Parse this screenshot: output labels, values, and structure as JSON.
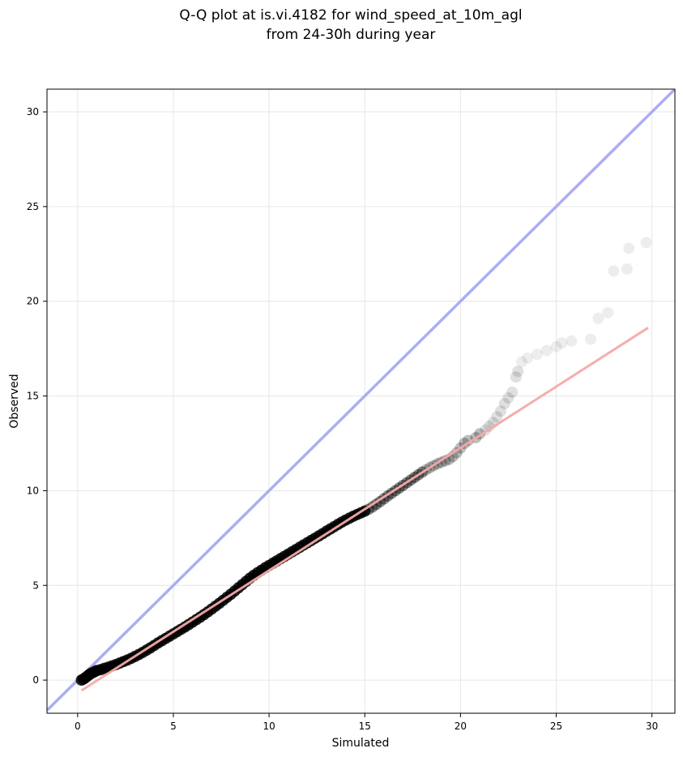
{
  "chart_data": {
    "type": "scatter",
    "title_lines": [
      "Q-Q plot at is.vi.4182 for wind_speed_at_10m_agl",
      "from 24-30h during year"
    ],
    "xlabel": "Simulated",
    "ylabel": "Observed",
    "xlim": [
      -1.6,
      31.2
    ],
    "ylim": [
      -1.75,
      31.2
    ],
    "xticks": [
      0,
      5,
      10,
      15,
      20,
      25,
      30
    ],
    "yticks": [
      0,
      5,
      10,
      15,
      20,
      25,
      30
    ],
    "grid": true,
    "reference_line": {
      "x": [
        -1.6,
        31.2
      ],
      "y": [
        -1.6,
        31.2
      ],
      "color": "#a6aaf3"
    },
    "fit_line": {
      "x": [
        0.2,
        29.8
      ],
      "y": [
        -0.55,
        18.6
      ],
      "color": "#f5a9a9"
    },
    "points_color": "#000000",
    "points": [
      [
        0.2,
        0.0
      ],
      [
        0.3,
        0.05
      ],
      [
        0.4,
        0.12
      ],
      [
        0.5,
        0.2
      ],
      [
        0.6,
        0.28
      ],
      [
        0.7,
        0.35
      ],
      [
        0.8,
        0.4
      ],
      [
        0.9,
        0.45
      ],
      [
        1.0,
        0.5
      ],
      [
        1.2,
        0.55
      ],
      [
        1.4,
        0.62
      ],
      [
        1.6,
        0.68
      ],
      [
        1.8,
        0.75
      ],
      [
        2.0,
        0.82
      ],
      [
        2.2,
        0.9
      ],
      [
        2.4,
        0.98
      ],
      [
        2.6,
        1.06
      ],
      [
        2.8,
        1.15
      ],
      [
        3.0,
        1.25
      ],
      [
        3.2,
        1.35
      ],
      [
        3.4,
        1.46
      ],
      [
        3.6,
        1.58
      ],
      [
        3.8,
        1.7
      ],
      [
        4.0,
        1.83
      ],
      [
        4.2,
        1.96
      ],
      [
        4.4,
        2.08
      ],
      [
        4.6,
        2.2
      ],
      [
        4.8,
        2.32
      ],
      [
        5.0,
        2.44
      ],
      [
        5.2,
        2.56
      ],
      [
        5.4,
        2.68
      ],
      [
        5.6,
        2.8
      ],
      [
        5.8,
        2.93
      ],
      [
        6.0,
        3.06
      ],
      [
        6.2,
        3.19
      ],
      [
        6.4,
        3.32
      ],
      [
        6.6,
        3.46
      ],
      [
        6.8,
        3.6
      ],
      [
        7.0,
        3.75
      ],
      [
        7.2,
        3.9
      ],
      [
        7.4,
        4.05
      ],
      [
        7.6,
        4.21
      ],
      [
        7.8,
        4.37
      ],
      [
        8.0,
        4.53
      ],
      [
        8.2,
        4.7
      ],
      [
        8.4,
        4.87
      ],
      [
        8.6,
        5.04
      ],
      [
        8.8,
        5.21
      ],
      [
        9.0,
        5.38
      ],
      [
        9.2,
        5.53
      ],
      [
        9.4,
        5.67
      ],
      [
        9.6,
        5.8
      ],
      [
        9.8,
        5.93
      ],
      [
        10.0,
        6.05
      ],
      [
        10.2,
        6.17
      ],
      [
        10.4,
        6.29
      ],
      [
        10.6,
        6.41
      ],
      [
        10.8,
        6.53
      ],
      [
        11.0,
        6.65
      ],
      [
        11.2,
        6.77
      ],
      [
        11.4,
        6.89
      ],
      [
        11.6,
        7.01
      ],
      [
        11.8,
        7.13
      ],
      [
        12.0,
        7.25
      ],
      [
        12.2,
        7.37
      ],
      [
        12.4,
        7.49
      ],
      [
        12.6,
        7.61
      ],
      [
        12.8,
        7.73
      ],
      [
        13.0,
        7.86
      ],
      [
        13.2,
        7.98
      ],
      [
        13.4,
        8.1
      ],
      [
        13.6,
        8.22
      ],
      [
        13.8,
        8.34
      ],
      [
        14.0,
        8.45
      ],
      [
        14.2,
        8.55
      ],
      [
        14.4,
        8.65
      ],
      [
        14.6,
        8.74
      ],
      [
        14.8,
        8.83
      ],
      [
        15.0,
        8.92
      ],
      [
        15.2,
        9.02
      ],
      [
        15.4,
        9.14
      ],
      [
        15.6,
        9.28
      ],
      [
        15.8,
        9.42
      ],
      [
        16.0,
        9.57
      ],
      [
        16.2,
        9.72
      ],
      [
        16.4,
        9.86
      ],
      [
        16.6,
        10.0
      ],
      [
        16.8,
        10.14
      ],
      [
        17.0,
        10.28
      ],
      [
        17.2,
        10.42
      ],
      [
        17.4,
        10.56
      ],
      [
        17.6,
        10.7
      ],
      [
        17.8,
        10.84
      ],
      [
        18.0,
        10.98
      ],
      [
        18.2,
        11.1
      ],
      [
        18.4,
        11.22
      ],
      [
        18.6,
        11.32
      ],
      [
        18.8,
        11.42
      ],
      [
        19.0,
        11.5
      ],
      [
        19.2,
        11.58
      ],
      [
        19.4,
        11.65
      ],
      [
        19.6,
        11.8
      ],
      [
        19.8,
        12.0
      ],
      [
        20.0,
        12.25
      ],
      [
        20.2,
        12.5
      ],
      [
        20.4,
        12.65
      ],
      [
        20.8,
        12.8
      ],
      [
        21.0,
        13.0
      ],
      [
        21.3,
        13.2
      ],
      [
        21.5,
        13.4
      ],
      [
        21.7,
        13.6
      ],
      [
        21.9,
        13.9
      ],
      [
        22.1,
        14.2
      ],
      [
        22.3,
        14.6
      ],
      [
        22.5,
        14.9
      ],
      [
        22.7,
        15.2
      ],
      [
        22.9,
        16.0
      ],
      [
        23.0,
        16.3
      ],
      [
        23.2,
        16.8
      ],
      [
        23.5,
        17.0
      ],
      [
        24.0,
        17.2
      ],
      [
        24.5,
        17.4
      ],
      [
        25.0,
        17.6
      ],
      [
        25.3,
        17.8
      ],
      [
        25.8,
        17.9
      ],
      [
        26.8,
        18.0
      ],
      [
        27.2,
        19.1
      ],
      [
        27.7,
        19.4
      ],
      [
        28.0,
        21.6
      ],
      [
        28.7,
        21.7
      ],
      [
        28.8,
        22.8
      ],
      [
        29.7,
        23.1
      ]
    ]
  }
}
